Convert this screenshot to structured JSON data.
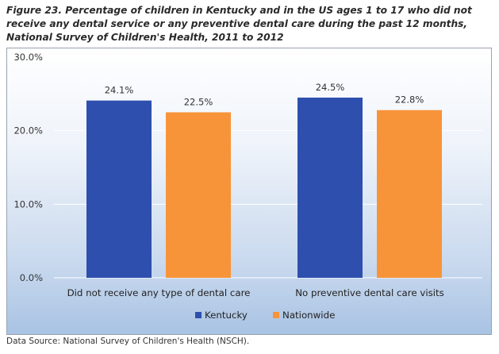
{
  "caption": "Figure 23. Percentage of children in Kentucky and in the US ages 1 to 17 who did not receive any dental service or any preventive dental care during the past 12 months, National Survey of Children's Health, 2011 to 2012",
  "source": "Data Source: National Survey of Children's Health (NSCH).",
  "chart_data": {
    "type": "bar",
    "title": "",
    "xlabel": "",
    "ylabel": "",
    "categories": [
      "Did not receive any type of dental care",
      "No preventive dental care visits"
    ],
    "series": [
      {
        "name": "Kentucky",
        "values": [
          24.1,
          24.5
        ],
        "labels": [
          "24.1%",
          "24.5%"
        ],
        "color": "#2e4fae"
      },
      {
        "name": "Nationwide",
        "values": [
          22.5,
          22.8
        ],
        "labels": [
          "22.5%",
          "22.8%"
        ],
        "color": "#f79439"
      }
    ],
    "ylim": [
      0,
      30
    ],
    "yticks": [
      0,
      10,
      20,
      30
    ],
    "ytick_labels": [
      "0.0%",
      "10.0%",
      "20.0%",
      "30.0%"
    ],
    "grid": true,
    "legend": "bottom-center"
  }
}
